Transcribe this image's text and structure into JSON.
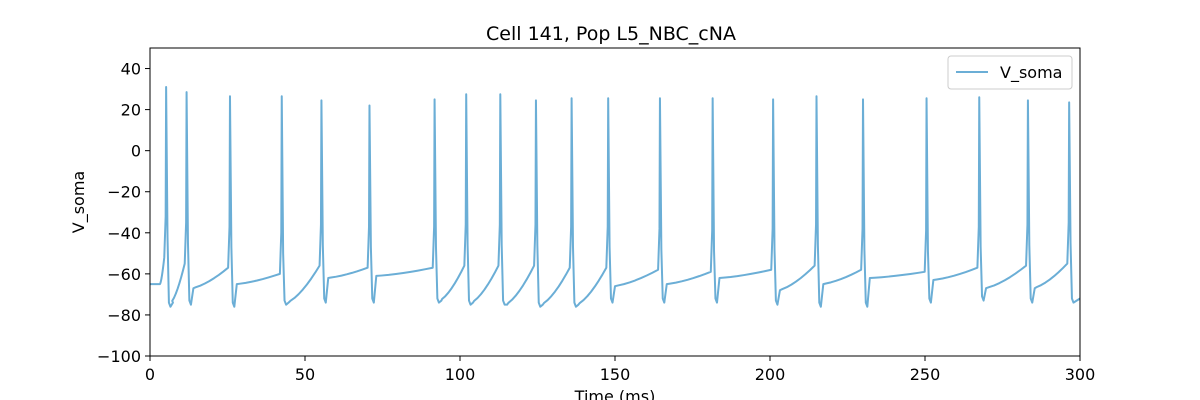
{
  "chart_data": {
    "type": "line",
    "title": "Cell 141, Pop L5_NBC_cNA",
    "xlabel": "Time (ms)",
    "ylabel": "V_soma",
    "xlim": [
      0,
      300
    ],
    "ylim": [
      -100,
      50
    ],
    "xticks": [
      0,
      50,
      100,
      150,
      200,
      250,
      300
    ],
    "yticks": [
      -100,
      -80,
      -60,
      -40,
      -20,
      0,
      20,
      40
    ],
    "grid": false,
    "legend_position": "top-right",
    "series": [
      {
        "name": "V_soma",
        "color": "#6baed6",
        "resting": [
          0,
          -65
        ],
        "spikes": [
          {
            "t": 5.2,
            "peak": 31,
            "ramp_start": -65,
            "thresh": -52,
            "ahp": -76
          },
          {
            "t": 11.8,
            "peak": 28.5,
            "ramp_start": -74,
            "thresh": -55,
            "ahp": -75
          },
          {
            "t": 25.8,
            "peak": 26.5,
            "ramp_start": -67,
            "thresh": -57,
            "ahp": -76
          },
          {
            "t": 42.5,
            "peak": 26.5,
            "ramp_start": -65,
            "thresh": -60,
            "ahp": -75
          },
          {
            "t": 55.3,
            "peak": 24.5,
            "ramp_start": -74,
            "thresh": -56,
            "ahp": -74
          },
          {
            "t": 70.8,
            "peak": 22,
            "ramp_start": -62,
            "thresh": -57,
            "ahp": -74
          },
          {
            "t": 91.8,
            "peak": 25,
            "ramp_start": -61,
            "thresh": -57,
            "ahp": -74
          },
          {
            "t": 102.0,
            "peak": 27.5,
            "ramp_start": -73,
            "thresh": -56,
            "ahp": -75
          },
          {
            "t": 113.0,
            "peak": 27.5,
            "ramp_start": -74,
            "thresh": -56,
            "ahp": -75
          },
          {
            "t": 124.5,
            "peak": 24.5,
            "ramp_start": -75,
            "thresh": -56,
            "ahp": -76
          },
          {
            "t": 136.0,
            "peak": 25.5,
            "ramp_start": -75,
            "thresh": -57,
            "ahp": -76
          },
          {
            "t": 147.8,
            "peak": 25.5,
            "ramp_start": -75,
            "thresh": -57,
            "ahp": -74
          },
          {
            "t": 164.5,
            "peak": 25.5,
            "ramp_start": -66,
            "thresh": -58,
            "ahp": -74
          },
          {
            "t": 181.5,
            "peak": 25.5,
            "ramp_start": -65,
            "thresh": -59,
            "ahp": -74
          },
          {
            "t": 201.0,
            "peak": 25,
            "ramp_start": -62,
            "thresh": -58,
            "ahp": -75
          },
          {
            "t": 215.0,
            "peak": 26.5,
            "ramp_start": -68,
            "thresh": -56,
            "ahp": -76
          },
          {
            "t": 230.0,
            "peak": 25,
            "ramp_start": -65,
            "thresh": -58,
            "ahp": -76
          },
          {
            "t": 250.5,
            "peak": 25.5,
            "ramp_start": -62,
            "thresh": -59,
            "ahp": -74
          },
          {
            "t": 267.5,
            "peak": 26,
            "ramp_start": -63,
            "thresh": -57,
            "ahp": -73
          },
          {
            "t": 283.2,
            "peak": 24.5,
            "ramp_start": -67,
            "thresh": -56,
            "ahp": -74
          },
          {
            "t": 296.5,
            "peak": 23.5,
            "ramp_start": -67,
            "thresh": -55,
            "ahp": -74
          }
        ],
        "end": [
          300,
          -72
        ]
      }
    ]
  }
}
